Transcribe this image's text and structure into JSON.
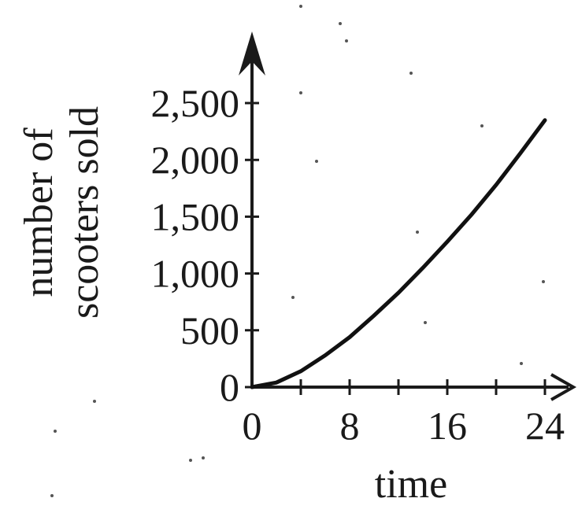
{
  "chart_data": {
    "type": "line",
    "title": "",
    "xlabel": "time",
    "ylabel_line1": "number of",
    "ylabel_line2": "scooters sold",
    "x_ticks": [
      0,
      4,
      8,
      12,
      16,
      20,
      24
    ],
    "x_tick_labels": [
      "0",
      "8",
      "16",
      "24"
    ],
    "x_labeled_ticks": [
      0,
      8,
      16,
      24
    ],
    "y_ticks": [
      0,
      500,
      1000,
      1500,
      2000,
      2500
    ],
    "y_tick_labels": [
      "0",
      "500",
      "1,000",
      "1,500",
      "2,000",
      "2,500"
    ],
    "xlim": [
      0,
      24
    ],
    "ylim": [
      0,
      2500
    ],
    "grid": false,
    "series": [
      {
        "x": [
          0,
          2,
          4,
          6,
          8,
          10,
          12,
          14,
          16,
          18,
          20,
          22,
          24
        ],
        "values": [
          0,
          40,
          140,
          280,
          440,
          630,
          830,
          1050,
          1280,
          1520,
          1780,
          2060,
          2350
        ]
      }
    ]
  }
}
